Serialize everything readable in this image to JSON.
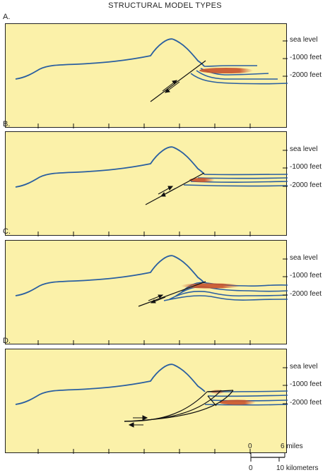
{
  "title": "STRUCTURAL MODEL TYPES",
  "depth_labels": [
    "sea level",
    "-1000 feet",
    "-2000 feet"
  ],
  "panels": [
    {
      "letter": "A.",
      "model": "A"
    },
    {
      "letter": "B.",
      "model": "B"
    },
    {
      "letter": "C.",
      "model": "C"
    },
    {
      "letter": "D.",
      "model": "D"
    }
  ],
  "scale_bar": {
    "miles_zero": "0",
    "miles_value": "6 miles",
    "km_zero": "0",
    "km_value": "10 kilometers"
  },
  "colors": {
    "panel_fill": "#fbf1a9",
    "horizon": "#2a5fa0",
    "fault": "#111111",
    "reservoir": "#c8522c"
  }
}
